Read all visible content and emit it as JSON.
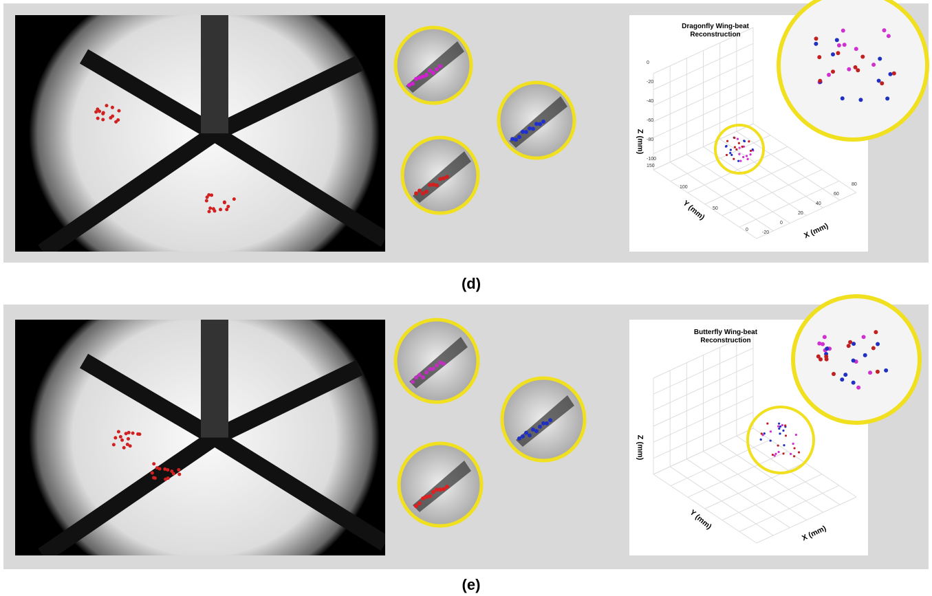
{
  "panels": [
    {
      "label": "(d)",
      "plot": {
        "title": "Dragonfly Wing-beat Reconstruction",
        "z_label": "Z (mm)",
        "y_label": "Y (mm)",
        "x_label": "X (mm)",
        "z_ticks": [
          0,
          -20,
          -40,
          -60,
          -80,
          -100
        ],
        "y_ticks": [
          150,
          100,
          50,
          0
        ],
        "x_ticks": [
          -20,
          0,
          20,
          40,
          60,
          80
        ]
      }
    },
    {
      "label": "(e)",
      "plot": {
        "title": "Butterfly Wing-beat Reconstruction",
        "z_label": "Z (mm)",
        "y_label": "Y (mm)",
        "x_label": "X (mm)"
      }
    }
  ]
}
